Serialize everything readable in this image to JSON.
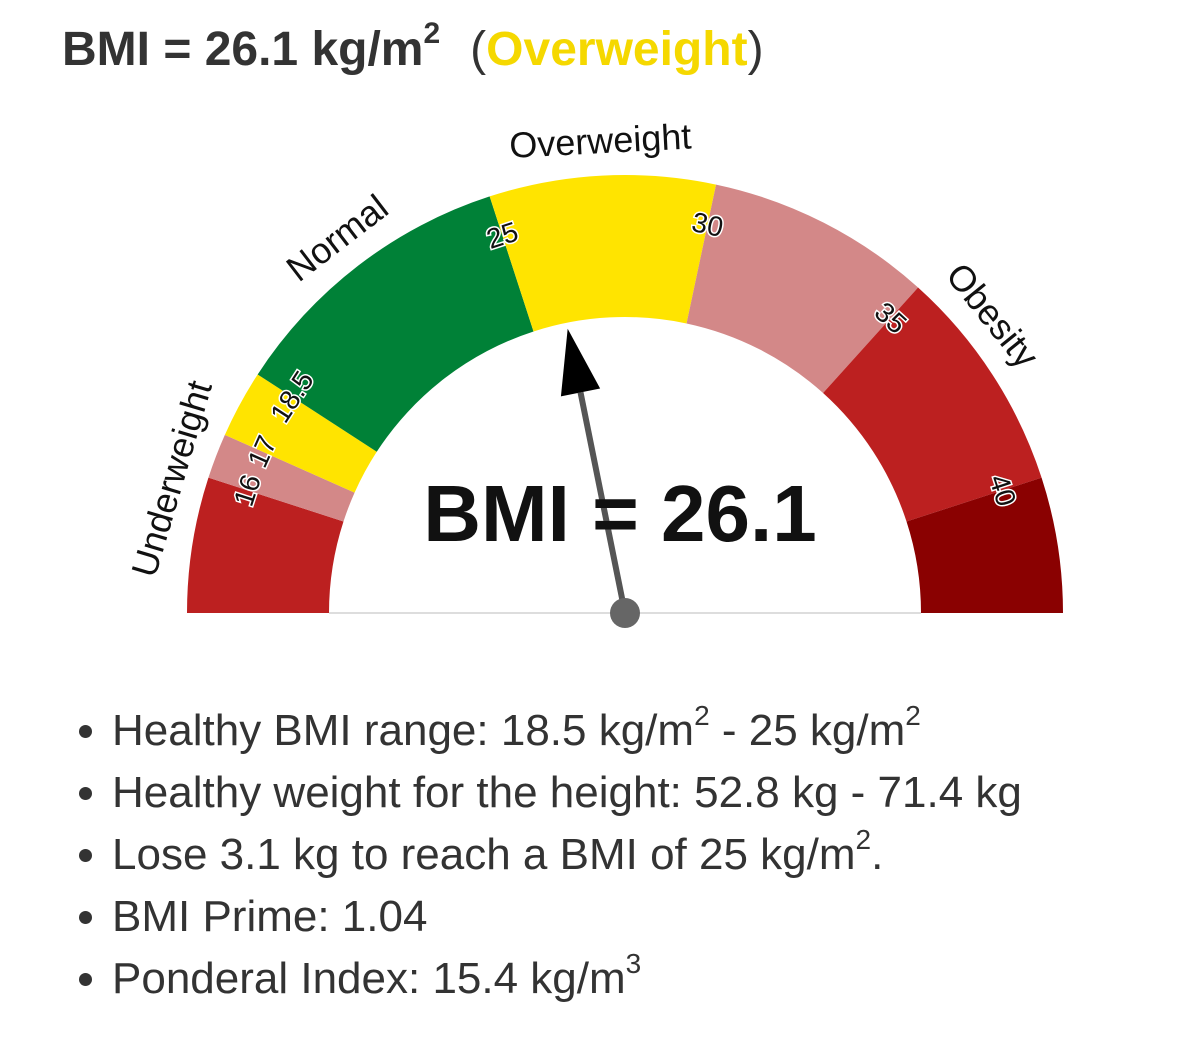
{
  "header": {
    "title": "BMI = 26.1 kg/m",
    "title_sup": "2",
    "status_open": "(",
    "status": "Overweight",
    "status_close": ")",
    "status_color": "#f5d800"
  },
  "chart_data": {
    "type": "gauge",
    "value": 26.1,
    "center_label": "BMI = 26.1",
    "gaugelim": [
      13,
      43
    ],
    "ticks": [
      16,
      17,
      18.5,
      25,
      30,
      35,
      40
    ],
    "band_colors": [
      "#bc2020",
      "#d38888",
      "#ffe400",
      "#008137",
      "#ffe400",
      "#d38888",
      "#bc2020",
      "#8a0101"
    ],
    "zones": [
      {
        "label": "Underweight",
        "range": [
          13,
          18.5
        ]
      },
      {
        "label": "Normal",
        "range": [
          18.5,
          25
        ]
      },
      {
        "label": "Overweight",
        "range": [
          25,
          30
        ]
      },
      {
        "label": "Obesity",
        "range": [
          30,
          43
        ]
      }
    ],
    "needle_color": "#555555"
  },
  "details": [
    [
      {
        "text": "Healthy BMI range: 18.5 kg/m"
      },
      {
        "sup": "2"
      },
      {
        "text": " - 25 kg/m"
      },
      {
        "sup": "2"
      }
    ],
    [
      {
        "text": "Healthy weight for the height: 52.8 kg - 71.4 kg"
      }
    ],
    [
      {
        "text": "Lose 3.1 kg to reach a BMI of 25 kg/m"
      },
      {
        "sup": "2"
      },
      {
        "text": "."
      }
    ],
    [
      {
        "text": "BMI Prime: 1.04"
      }
    ],
    [
      {
        "text": "Ponderal Index: 15.4 kg/m"
      },
      {
        "sup": "3"
      }
    ]
  ]
}
